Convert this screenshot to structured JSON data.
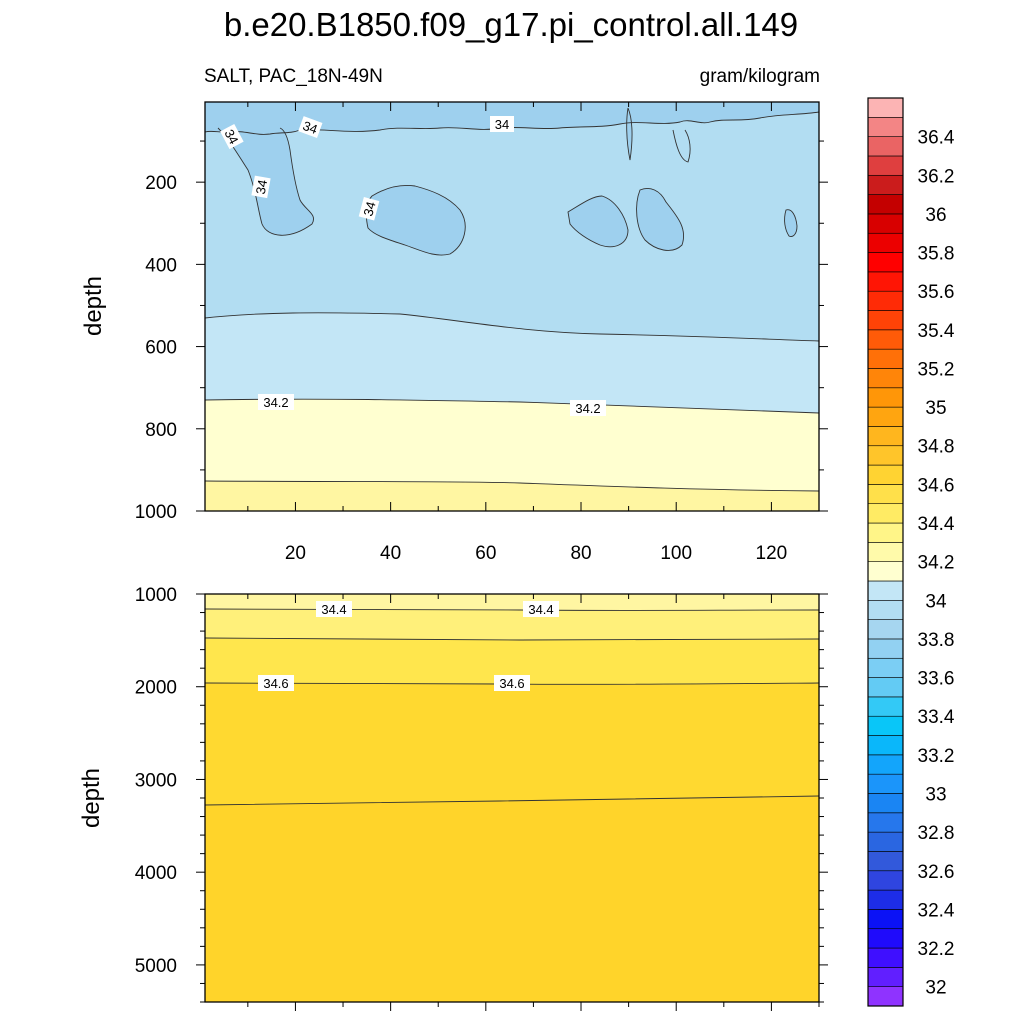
{
  "title": "b.e20.B1850.f09_g17.pi_control.all.149",
  "left_string": "SALT, PAC_18N-49N",
  "right_string": "gram/kilogram",
  "chart_data": [
    {
      "type": "contour",
      "panel": "upper",
      "variable": "SALT",
      "region": "PAC_18N-49N",
      "units": "gram/kilogram",
      "ylabel": "depth",
      "xlabel": "",
      "xlim": [
        1,
        130
      ],
      "ylim": [
        1000,
        5
      ],
      "y_reversed": true,
      "xticks": [
        20,
        40,
        60,
        80,
        100,
        120
      ],
      "yticks": [
        200,
        400,
        600,
        800,
        1000
      ],
      "contour_levels": [
        34.0,
        34.1,
        34.2,
        34.3
      ],
      "contour_labels": [
        "34",
        "34",
        "34",
        "34",
        "34",
        "34.2",
        "34.2"
      ],
      "fields": [
        {
          "range": "33.9-34.0",
          "region": "near-surface layer and subsurface patches, x 3-28, 42-57, 88-100, 102-112, 120-123"
        },
        {
          "range": "34.0-34.1",
          "depth_bottom": [
            530,
            560,
            590
          ]
        },
        {
          "range": "34.1-34.2",
          "depth_bottom": [
            728,
            740,
            762
          ]
        },
        {
          "range": "34.2-34.3",
          "depth_bottom": [
            930,
            935,
            950
          ]
        },
        {
          "range": "34.3-34.4",
          "depth_bottom": [
            1000,
            1000,
            1000
          ]
        }
      ]
    },
    {
      "type": "contour",
      "panel": "lower",
      "ylabel": "depth",
      "xlim": [
        1,
        130
      ],
      "ylim": [
        5400,
        1000
      ],
      "y_reversed": true,
      "yticks": [
        1000,
        2000,
        3000,
        4000,
        5000
      ],
      "contour_levels": [
        34.4,
        34.5,
        34.6,
        34.7
      ],
      "contour_labels": [
        "34.4",
        "34.4",
        "34.6",
        "34.6"
      ],
      "isolines": [
        {
          "level": 34.4,
          "depth": [
            1160,
            1175,
            1175
          ]
        },
        {
          "level": 34.5,
          "depth": [
            1475,
            1490,
            1480
          ]
        },
        {
          "level": 34.6,
          "depth": [
            1950,
            1955,
            1945
          ]
        },
        {
          "level": 34.7,
          "depth": [
            3255,
            3200,
            3150
          ]
        }
      ]
    }
  ],
  "colorbar": {
    "labels": [
      "32",
      "32.2",
      "32.4",
      "32.6",
      "32.8",
      "33",
      "33.2",
      "33.4",
      "33.6",
      "33.8",
      "34",
      "34.2",
      "34.4",
      "34.6",
      "34.8",
      "35",
      "35.2",
      "35.4",
      "35.6",
      "35.8",
      "36",
      "36.2",
      "36.4"
    ],
    "colors_bottom_to_top": [
      "#8f33ff",
      "#611fff",
      "#3f0fff",
      "#1f0bfb",
      "#0b12f6",
      "#1d2de8",
      "#2f45e0",
      "#3259db",
      "#2a66e1",
      "#2677ec",
      "#1a85f3",
      "#1b95fa",
      "#13a5fb",
      "#0ab7fa",
      "#09c6f8",
      "#33c9f6",
      "#63cbf4",
      "#7bcef4",
      "#92d1f2",
      "#a6d6f0",
      "#b2ddf2",
      "#c3e6f6",
      "#ffffd0",
      "#fffaaa",
      "#fff588",
      "#ffeb64",
      "#ffe04a",
      "#ffd332",
      "#ffc52a",
      "#ffb61e",
      "#ffa510",
      "#ff9608",
      "#ff8509",
      "#ff7008",
      "#ff5b08",
      "#ff4307",
      "#ff2b06",
      "#ff1505",
      "#ff0000",
      "#ec0000",
      "#d80000",
      "#c40000",
      "#cb1c1c",
      "#df3f3f",
      "#ea6464",
      "#f38585",
      "#fcb4b4"
    ]
  },
  "colors": {
    "c33_9": "#9ed0ee",
    "c34_0": "#b2ddf2",
    "c34_1": "#c3e6f6",
    "c34_2": "#ffffd0",
    "c34_3": "#fff6a2",
    "c34_4": "#fff07a",
    "c34_5": "#ffe64d",
    "c34_6": "#ffd930",
    "c34_7": "#ffd42a"
  }
}
